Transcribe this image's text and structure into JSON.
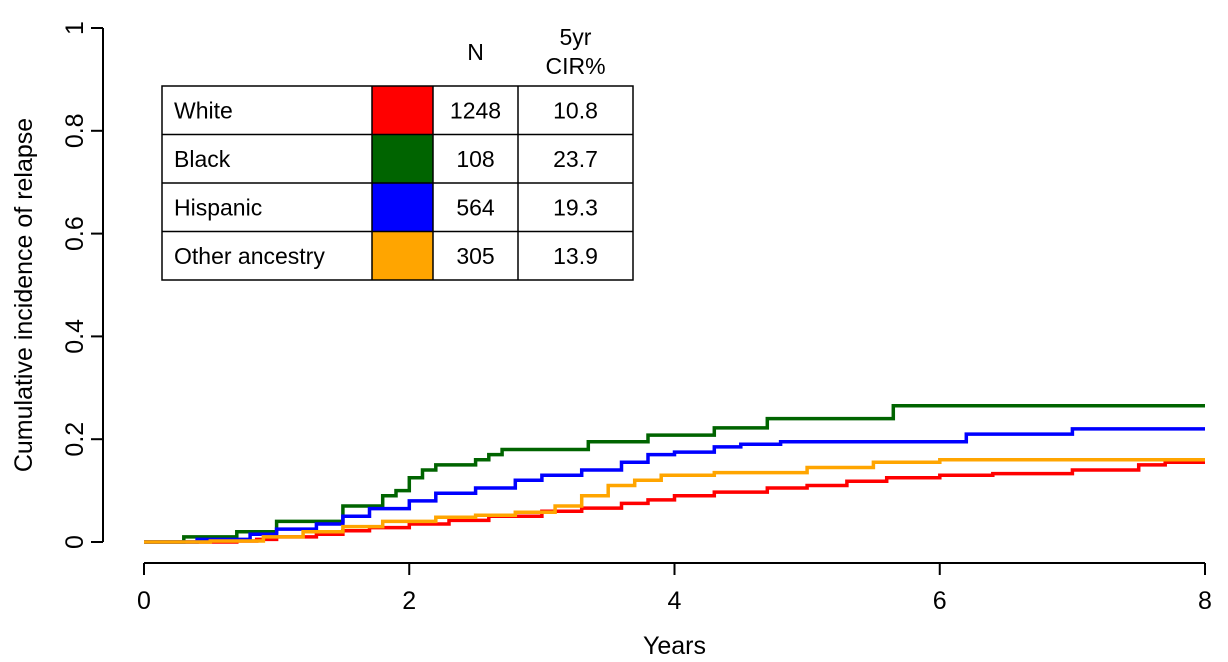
{
  "chart_data": {
    "type": "line",
    "step": true,
    "xlabel": "Years",
    "ylabel": "Cumulative incidence of relapse",
    "xlim": [
      0,
      8
    ],
    "ylim": [
      0,
      1
    ],
    "xticks": [
      0,
      2,
      4,
      6,
      8
    ],
    "xtick_labels": [
      "0",
      "2",
      "4",
      "6",
      "8"
    ],
    "yticks": [
      0,
      0.2,
      0.4,
      0.6,
      0.8,
      1
    ],
    "ytick_labels": [
      "0",
      "0.2",
      "0.4",
      "0.6",
      "0.8",
      "1"
    ],
    "grid": false,
    "legend": {
      "placement": "top-left",
      "header_n": "N",
      "header_cir_line1": "5yr",
      "header_cir_line2": "CIR%"
    },
    "series": [
      {
        "name": "White",
        "color": "#ff0000",
        "n": "1248",
        "cir5": "10.8",
        "x": [
          0,
          0.3,
          0.7,
          0.85,
          1.0,
          1.3,
          1.5,
          1.7,
          2.0,
          2.3,
          2.6,
          3.0,
          3.3,
          3.6,
          3.8,
          4.0,
          4.3,
          4.7,
          5.0,
          5.3,
          5.6,
          6.0,
          6.4,
          7.0,
          7.5,
          7.7,
          8.0
        ],
        "y": [
          0,
          0,
          0.002,
          0.005,
          0.01,
          0.015,
          0.022,
          0.028,
          0.035,
          0.042,
          0.05,
          0.06,
          0.066,
          0.075,
          0.082,
          0.09,
          0.097,
          0.105,
          0.11,
          0.118,
          0.125,
          0.13,
          0.133,
          0.14,
          0.15,
          0.155,
          0.155
        ]
      },
      {
        "name": "Black",
        "color": "#006400",
        "n": "108",
        "cir5": "23.7",
        "x": [
          0,
          0.3,
          0.7,
          1.0,
          1.5,
          1.8,
          1.9,
          2.0,
          2.1,
          2.2,
          2.5,
          2.6,
          2.7,
          2.8,
          3.35,
          3.8,
          4.3,
          4.7,
          5.65,
          8.0
        ],
        "y": [
          0,
          0.01,
          0.02,
          0.04,
          0.07,
          0.09,
          0.1,
          0.125,
          0.14,
          0.15,
          0.16,
          0.17,
          0.18,
          0.18,
          0.195,
          0.208,
          0.222,
          0.24,
          0.265,
          0.265
        ]
      },
      {
        "name": "Hispanic",
        "color": "#0000ff",
        "n": "564",
        "cir5": "19.3",
        "x": [
          0,
          0.4,
          0.8,
          1.0,
          1.3,
          1.5,
          1.7,
          2.0,
          2.2,
          2.5,
          2.8,
          3.0,
          3.3,
          3.6,
          3.8,
          4.0,
          4.3,
          4.5,
          4.8,
          6.0,
          6.2,
          7.0,
          8.0
        ],
        "y": [
          0,
          0.005,
          0.015,
          0.025,
          0.035,
          0.05,
          0.065,
          0.08,
          0.095,
          0.105,
          0.12,
          0.13,
          0.14,
          0.155,
          0.17,
          0.175,
          0.185,
          0.19,
          0.195,
          0.195,
          0.21,
          0.22,
          0.22
        ]
      },
      {
        "name": "Other ancestry",
        "color": "#ffa500",
        "n": "305",
        "cir5": "13.9",
        "x": [
          0,
          0.5,
          0.9,
          1.2,
          1.5,
          1.8,
          2.2,
          2.5,
          2.8,
          3.1,
          3.3,
          3.5,
          3.7,
          3.9,
          4.3,
          5.0,
          5.5,
          6.0,
          8.0
        ],
        "y": [
          0,
          0.002,
          0.01,
          0.02,
          0.03,
          0.04,
          0.048,
          0.052,
          0.058,
          0.07,
          0.09,
          0.11,
          0.12,
          0.13,
          0.135,
          0.145,
          0.155,
          0.16,
          0.16
        ]
      }
    ]
  }
}
